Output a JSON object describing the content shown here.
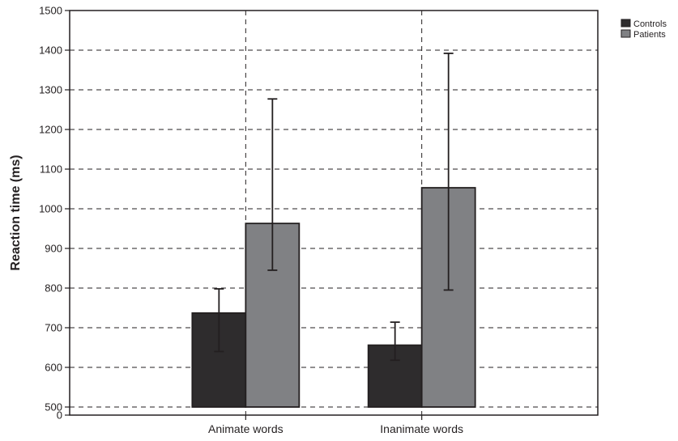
{
  "chart_data": {
    "type": "bar",
    "title": "",
    "xlabel": "",
    "ylabel": "Reaction time (ms)",
    "categories": [
      "Animate words",
      "Inanimate words"
    ],
    "series": [
      {
        "name": "Controls",
        "color": "#2e2c2d",
        "values": [
          737,
          656
        ],
        "error_low": [
          640,
          618
        ],
        "error_high": [
          798,
          714
        ]
      },
      {
        "name": "Patients",
        "color": "#808184",
        "values": [
          963,
          1053
        ],
        "error_low": [
          845,
          795
        ],
        "error_high": [
          1277,
          1392
        ]
      }
    ],
    "yticks": [
      0,
      500,
      600,
      700,
      800,
      900,
      1000,
      1100,
      1200,
      1300,
      1400,
      1500
    ],
    "ylim": [
      0,
      1500
    ],
    "axis_break": [
      0,
      500
    ],
    "grid": "dashed",
    "legend_position": "top-right"
  }
}
